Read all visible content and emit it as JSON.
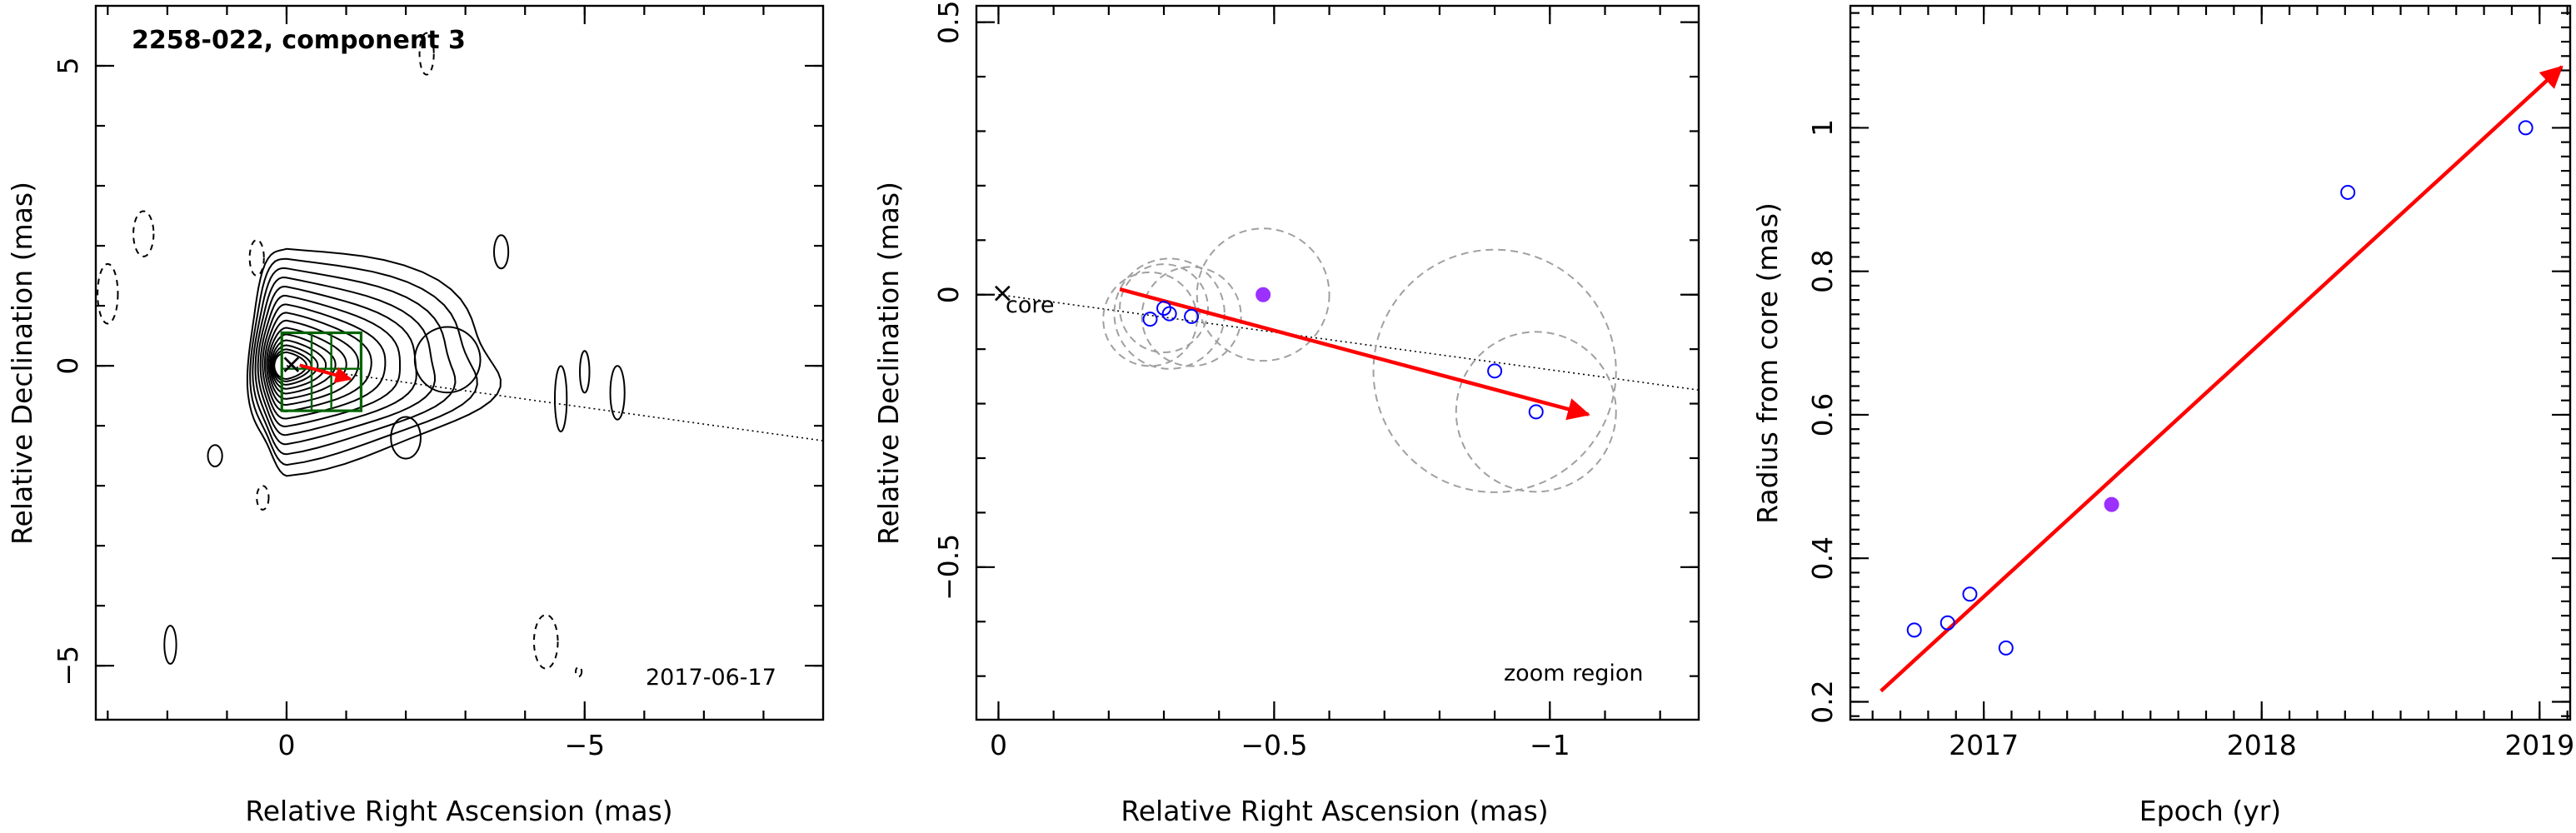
{
  "chart_data": [
    {
      "type": "contour",
      "title": "2258-022, component 3",
      "date": "2017-06-17",
      "xlabel": "Relative Right Ascension (mas)",
      "ylabel": "Relative Declination (mas)",
      "xlim": [
        3.2,
        -9.0
      ],
      "ylim": [
        -5.9,
        6.0
      ],
      "xticks": [
        0,
        -5
      ],
      "xticklabels": [
        "0",
        "−5"
      ],
      "yticks": [
        -5,
        0,
        5
      ],
      "yticklabels": [
        "−5",
        "0",
        "5"
      ],
      "core": {
        "ra": 0,
        "dec": 0
      },
      "contour_levels": 15,
      "zoom_box": {
        "ra_range": [
          0.08,
          -1.25
        ],
        "dec_range": [
          -0.75,
          0.55
        ]
      },
      "vector": {
        "from": [
          -0.22,
          0.01
        ],
        "to": [
          -1.07,
          -0.22
        ]
      },
      "pa_line": {
        "from": [
          0,
          0
        ],
        "to": [
          -9.0,
          -1.25
        ]
      },
      "colors": {
        "contours": "#000000",
        "zoom_box": "#006400",
        "vector": "#ff0000"
      }
    },
    {
      "type": "scatter",
      "xlabel": "Relative Right Ascension (mas)",
      "ylabel": "Relative Declination (mas)",
      "xlim": [
        0.04,
        -1.27
      ],
      "ylim": [
        -0.78,
        0.53
      ],
      "xticks": [
        0,
        -0.5,
        -1
      ],
      "xticklabels": [
        "0",
        "−0.5",
        "−1"
      ],
      "yticks": [
        -0.5,
        0,
        0.5
      ],
      "yticklabels": [
        "−0.5",
        "0",
        "0.5"
      ],
      "core_label": "core",
      "region_label": "zoom region",
      "points": [
        {
          "x": -0.275,
          "y": -0.045,
          "size": 0.085,
          "highlight": false
        },
        {
          "x": -0.3,
          "y": -0.025,
          "size": 0.08,
          "highlight": false
        },
        {
          "x": -0.31,
          "y": -0.035,
          "size": 0.1,
          "highlight": false
        },
        {
          "x": -0.35,
          "y": -0.04,
          "size": 0.09,
          "highlight": false
        },
        {
          "x": -0.48,
          "y": 0.0,
          "size": 0.12,
          "highlight": true
        },
        {
          "x": -0.9,
          "y": -0.14,
          "size": 0.22,
          "highlight": false
        },
        {
          "x": -0.975,
          "y": -0.215,
          "size": 0.145,
          "highlight": false
        }
      ],
      "vector": {
        "from": [
          -0.22,
          0.01
        ],
        "to": [
          -1.07,
          -0.22
        ]
      },
      "pa_line": {
        "from": [
          0,
          0
        ],
        "to": [
          -1.27,
          -0.175
        ]
      },
      "colors": {
        "points": "#0000ff",
        "highlight": "#9b30ff",
        "size_circles": "#a0a0a0",
        "vector": "#ff0000"
      }
    },
    {
      "type": "scatter",
      "xlabel": "Epoch (yr)",
      "ylabel": "Radius from core (mas)",
      "xlim": [
        2016.52,
        2019.11
      ],
      "ylim": [
        0.175,
        1.17
      ],
      "xticks": [
        2017,
        2018,
        2019
      ],
      "xticklabels": [
        "2017",
        "2018",
        "2019"
      ],
      "yticks": [
        0.2,
        0.4,
        0.6,
        0.8,
        1.0
      ],
      "yticklabels": [
        "0.2",
        "0.4",
        "0.6",
        "0.8",
        "1"
      ],
      "points": [
        {
          "x": 2016.75,
          "y": 0.3,
          "highlight": false
        },
        {
          "x": 2016.87,
          "y": 0.31,
          "highlight": false
        },
        {
          "x": 2016.95,
          "y": 0.35,
          "highlight": false
        },
        {
          "x": 2017.08,
          "y": 0.275,
          "highlight": false
        },
        {
          "x": 2017.46,
          "y": 0.475,
          "highlight": true
        },
        {
          "x": 2018.31,
          "y": 0.91,
          "highlight": false
        },
        {
          "x": 2018.95,
          "y": 1.0,
          "highlight": false
        }
      ],
      "fit_line": {
        "from": [
          2016.63,
          0.215
        ],
        "to": [
          2019.08,
          1.085
        ]
      },
      "colors": {
        "points": "#0000ff",
        "highlight": "#9b30ff",
        "fit": "#ff0000"
      }
    }
  ]
}
